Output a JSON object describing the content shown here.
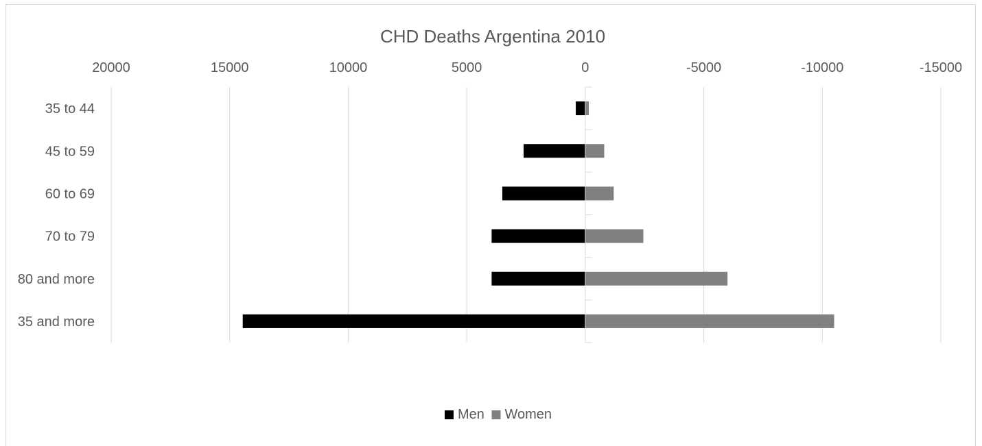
{
  "chart_data": {
    "type": "bar",
    "orientation": "horizontal",
    "title": "CHD Deaths Argentina 2010",
    "categories": [
      "35 to 44",
      "45 to 59",
      "60 to 69",
      "70 to 79",
      "80 and more",
      "35 and more"
    ],
    "series": [
      {
        "name": "Men",
        "color": "#000000",
        "values": [
          400,
          2600,
          3500,
          3950,
          3950,
          14450
        ]
      },
      {
        "name": "Women",
        "color": "#808080",
        "values": [
          -150,
          -800,
          -1200,
          -2450,
          -6000,
          -10500
        ]
      }
    ],
    "x_axis": {
      "reversed": true,
      "xlim": [
        20000,
        -15000
      ],
      "ticks": [
        20000,
        15000,
        10000,
        5000,
        0,
        -5000,
        -10000,
        -15000
      ],
      "tick_labels": [
        "20000",
        "15000",
        "10000",
        "5000",
        "0",
        "-5000",
        "-10000",
        "-15000"
      ],
      "position": "top"
    },
    "grid": true,
    "legend": {
      "position": "bottom",
      "entries": [
        "Men",
        "Women"
      ]
    }
  }
}
